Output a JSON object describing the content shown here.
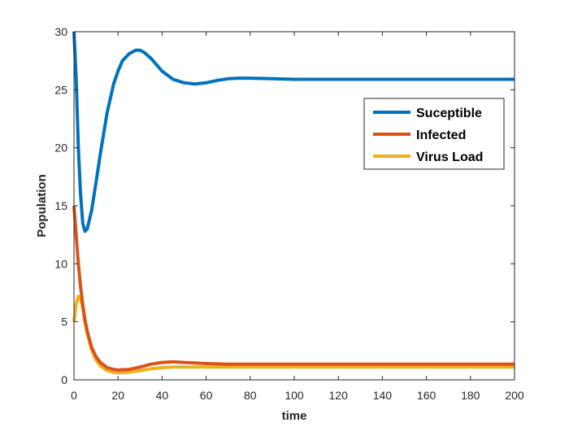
{
  "chart_data": {
    "type": "line",
    "title": "",
    "xlabel": "time",
    "ylabel": "Population",
    "xlim": [
      0,
      200
    ],
    "ylim": [
      0,
      30
    ],
    "xticks": [
      0,
      20,
      40,
      60,
      80,
      100,
      120,
      140,
      160,
      180,
      200
    ],
    "yticks": [
      0,
      5,
      10,
      15,
      20,
      25,
      30
    ],
    "grid": false,
    "legend_position": "top-right",
    "series": [
      {
        "name": "Suceptible",
        "color": "#0072BD",
        "x": [
          0,
          1,
          2,
          3,
          4,
          5,
          6,
          8,
          10,
          12,
          15,
          18,
          20,
          22,
          25,
          28,
          30,
          32,
          35,
          40,
          45,
          50,
          55,
          60,
          65,
          70,
          75,
          80,
          90,
          100,
          120,
          140,
          160,
          180,
          200
        ],
        "y": [
          30,
          26,
          20,
          16,
          13.5,
          12.8,
          13,
          14.6,
          17,
          19.5,
          23,
          25.5,
          26.6,
          27.5,
          28.1,
          28.4,
          28.4,
          28.2,
          27.7,
          26.6,
          25.9,
          25.6,
          25.5,
          25.6,
          25.8,
          25.95,
          26.0,
          26.0,
          25.95,
          25.9,
          25.9,
          25.9,
          25.9,
          25.9,
          25.9
        ]
      },
      {
        "name": "Infected",
        "color": "#D95319",
        "x": [
          0,
          1,
          2,
          3,
          4,
          5,
          6,
          8,
          10,
          12,
          15,
          18,
          20,
          25,
          30,
          35,
          40,
          45,
          50,
          55,
          60,
          70,
          80,
          100,
          120,
          140,
          160,
          180,
          200
        ],
        "y": [
          15,
          12.5,
          10,
          8,
          6.5,
          5.2,
          4.2,
          2.8,
          2.0,
          1.5,
          1.05,
          0.9,
          0.85,
          0.9,
          1.1,
          1.35,
          1.5,
          1.55,
          1.5,
          1.45,
          1.4,
          1.35,
          1.35,
          1.35,
          1.35,
          1.35,
          1.35,
          1.35,
          1.35
        ]
      },
      {
        "name": "Virus Load",
        "color": "#EDB120",
        "x": [
          0,
          1,
          2,
          3,
          4,
          5,
          6,
          8,
          10,
          12,
          15,
          18,
          20,
          25,
          30,
          35,
          40,
          45,
          50,
          55,
          60,
          70,
          80,
          100,
          120,
          140,
          160,
          180,
          200
        ],
        "y": [
          5,
          6.5,
          7.2,
          7.0,
          6.2,
          5.0,
          4.0,
          2.6,
          1.7,
          1.2,
          0.8,
          0.65,
          0.6,
          0.65,
          0.8,
          0.95,
          1.05,
          1.1,
          1.1,
          1.1,
          1.1,
          1.1,
          1.1,
          1.1,
          1.1,
          1.1,
          1.1,
          1.1,
          1.1
        ]
      }
    ]
  }
}
